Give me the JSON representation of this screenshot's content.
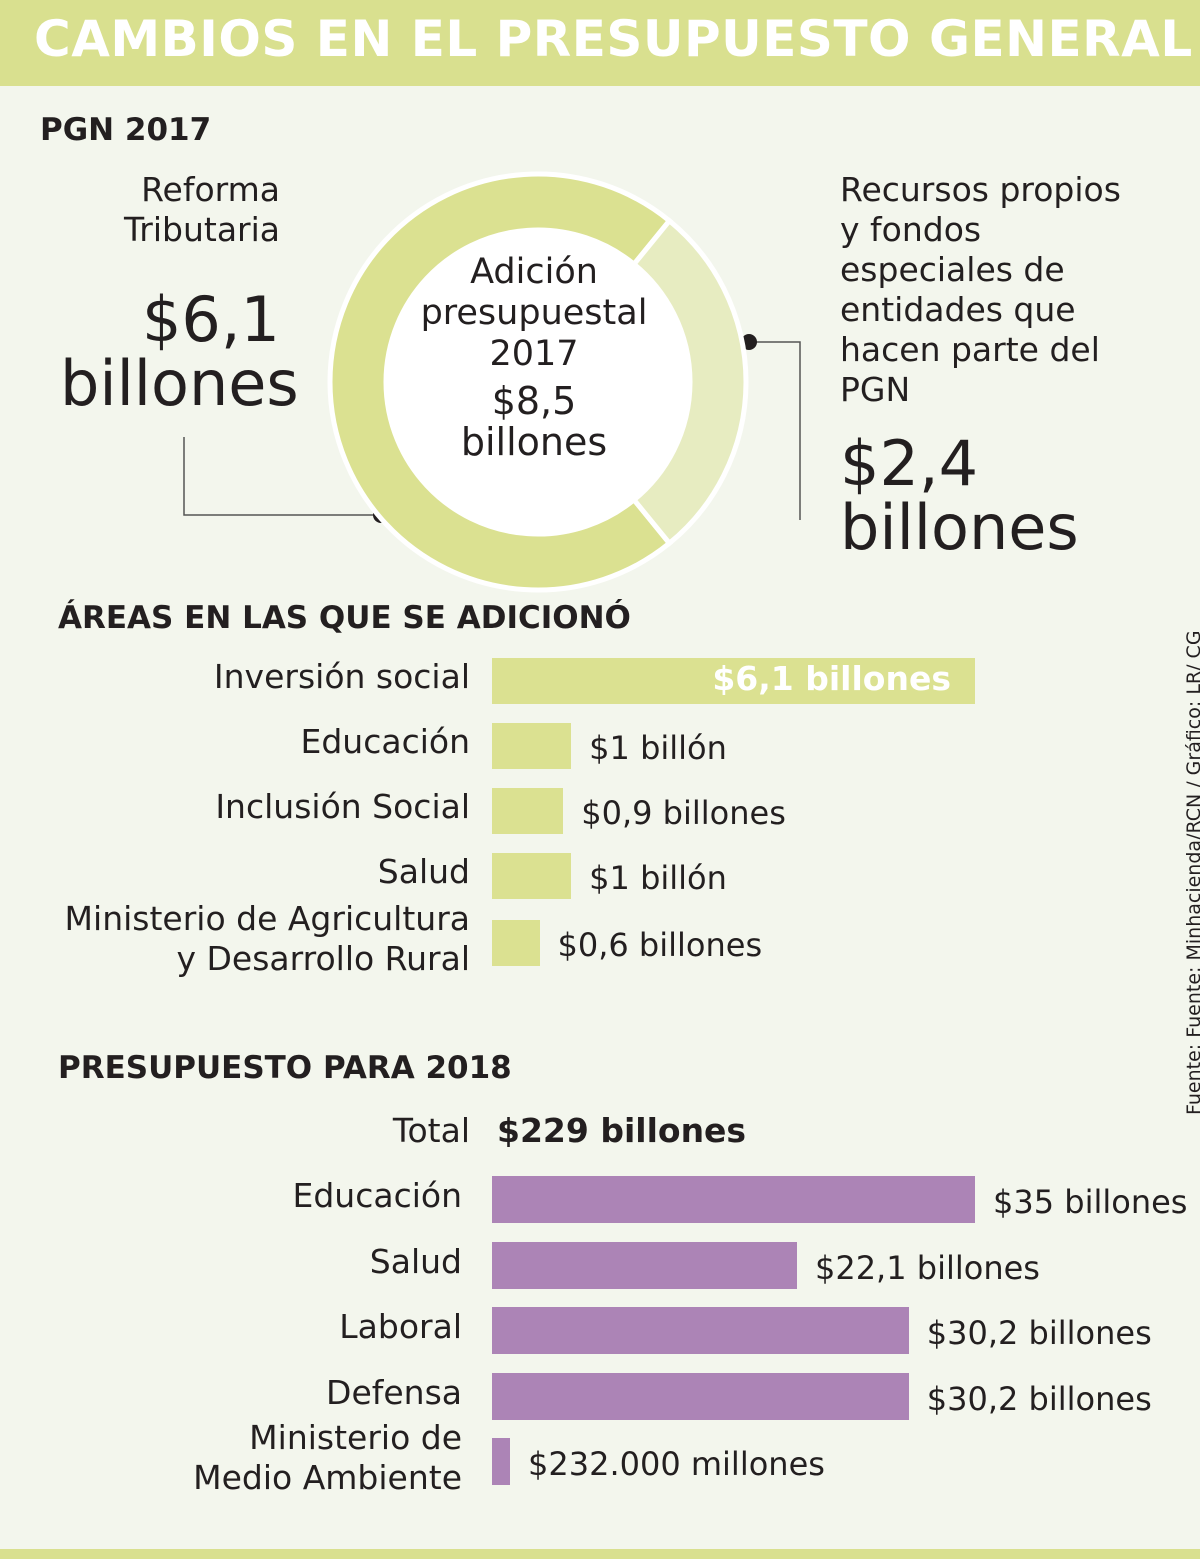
{
  "header": {
    "title": "CAMBIOS EN EL PRESUPUESTO GENERAL"
  },
  "colors": {
    "header": "#d9e08f",
    "green_bar": "#dbe191",
    "green_light": "#e7ecc1",
    "purple_bar": "#ac84b6",
    "background": "#f3f6ed"
  },
  "pgn2017": {
    "title": "PGN 2017",
    "center": {
      "line1": "Adición",
      "line2": "presupuestal",
      "line3": "2017",
      "value_line1": "$8,5",
      "value_line2": "billones"
    },
    "left": {
      "label_line1": "Reforma",
      "label_line2": "Tributaria",
      "value_line1": "$6,1",
      "value_line2": "billones"
    },
    "right": {
      "label_lines": [
        "Recursos propios",
        "y fondos",
        "especiales de",
        "entidades que",
        "hacen parte del",
        "PGN"
      ],
      "value_line1": "$2,4",
      "value_line2": "billones"
    }
  },
  "areas": {
    "title": "ÁREAS EN LAS QUE SE ADICIONÓ"
  },
  "budget2018": {
    "title": "PRESUPUESTO PARA 2018",
    "total_label": "Total",
    "total_value": "$229 billones"
  },
  "source": "Fuente: Fuente: Minhacienda/RCN / Gráfico: LR/ CG",
  "chart_data": [
    {
      "type": "pie",
      "title": "PGN 2017",
      "center_label": "Adición presupuestal 2017",
      "center_value": "$8,5 billones",
      "total": 8.5,
      "categories": [
        "Reforma Tributaria",
        "Recursos propios y fondos especiales de entidades que hacen parte del PGN"
      ],
      "values": [
        6.1,
        2.4
      ],
      "unit": "billones"
    },
    {
      "type": "bar",
      "title": "ÁREAS EN LAS QUE SE ADICIONÓ",
      "categories": [
        "Inversión social",
        "Educación",
        "Inclusión Social",
        "Salud",
        "Ministerio de Agricultura y Desarrollo Rural"
      ],
      "label_lines": [
        [
          "Inversión social"
        ],
        [
          "Educación"
        ],
        [
          "Inclusión Social"
        ],
        [
          "Salud"
        ],
        [
          "Ministerio de Agricultura",
          "y Desarrollo Rural"
        ]
      ],
      "values": [
        6.1,
        1,
        0.9,
        1,
        0.6
      ],
      "value_labels": [
        "$6,1 billones",
        "$1 billón",
        "$0,9 billones",
        "$1 billón",
        "$0,6 billones"
      ],
      "unit": "billones"
    },
    {
      "type": "bar",
      "title": "PRESUPUESTO PARA 2018",
      "categories": [
        "Educación",
        "Salud",
        "Laboral",
        "Defensa",
        "Ministerio de Medio Ambiente"
      ],
      "label_lines": [
        [
          "Educación"
        ],
        [
          "Salud"
        ],
        [
          "Laboral"
        ],
        [
          "Defensa"
        ],
        [
          "Ministerio de",
          "Medio Ambiente"
        ]
      ],
      "values": [
        35,
        22.1,
        30.2,
        30.2,
        0.232
      ],
      "value_labels": [
        "$35 billones",
        "$22,1 billones",
        "$30,2 billones",
        "$30,2 billones",
        "$232.000 millones"
      ],
      "unit": "billones"
    }
  ]
}
